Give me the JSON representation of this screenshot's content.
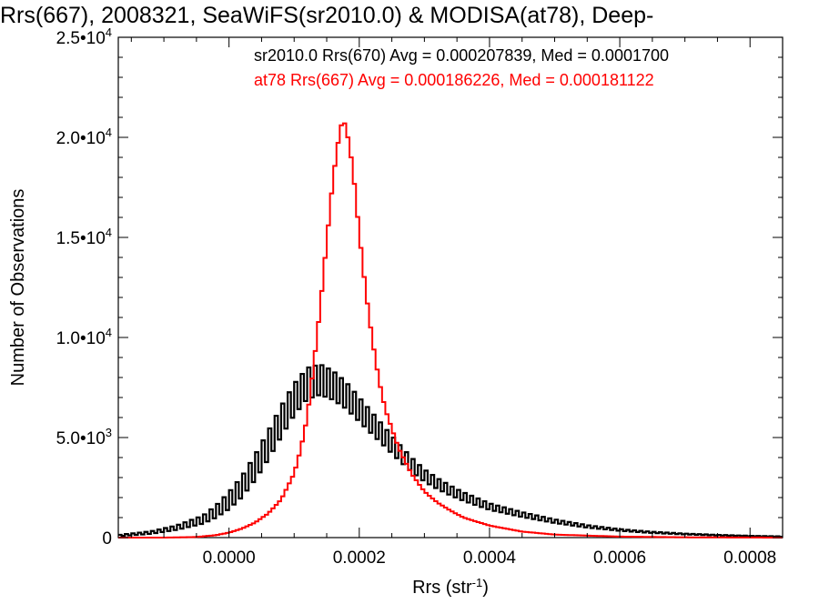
{
  "chart_data": {
    "type": "line",
    "title": "Rrs(667), 2008321, SeaWiFS(sr2010.0) & MODISA(at78), Deep-",
    "xlabel": "Rrs (str",
    "xlabel_sup": "-1",
    "xlabel_close": ")",
    "ylabel": "Number of Observations",
    "xlim": [
      -0.00017,
      0.00085
    ],
    "ylim": [
      0,
      25000
    ],
    "x_ticks": [
      {
        "value": 0.0,
        "label": "0.0000"
      },
      {
        "value": 0.0002,
        "label": "0.0002"
      },
      {
        "value": 0.0004,
        "label": "0.0004"
      },
      {
        "value": 0.0006,
        "label": "0.0006"
      },
      {
        "value": 0.0008,
        "label": "0.0008"
      }
    ],
    "y_ticks": [
      {
        "value": 0,
        "mant": "0",
        "exp": ""
      },
      {
        "value": 5000,
        "mant": "5.0•10",
        "exp": "3"
      },
      {
        "value": 10000,
        "mant": "1.0•10",
        "exp": "4"
      },
      {
        "value": 15000,
        "mant": "1.5•10",
        "exp": "4"
      },
      {
        "value": 20000,
        "mant": "2.0•10",
        "exp": "4"
      },
      {
        "value": 25000,
        "mant": "2.5•10",
        "exp": "4"
      }
    ],
    "grid": false,
    "step": true,
    "annotations": [
      {
        "text": "sr2010.0 Rrs(670) Avg = 0.000207839, Med = 0.0001700",
        "color": "#000000"
      },
      {
        "text": "at78 Rrs(667) Avg = 0.000186226, Med = 0.000181122",
        "color": "#ff0000"
      }
    ],
    "series": [
      {
        "name": "sr2010.0 Rrs(670)",
        "color": "#000000",
        "style": "sawtooth-step",
        "x": [
          -0.00017,
          -0.00012,
          -8e-05,
          -4e-05,
          -2e-05,
          0.0,
          2e-05,
          4e-05,
          6e-05,
          8e-05,
          0.0001,
          0.00012,
          0.00014,
          0.00016,
          0.00018,
          0.0002,
          0.00022,
          0.00024,
          0.00026,
          0.00028,
          0.0003,
          0.00032,
          0.00034,
          0.00036,
          0.00038,
          0.0004,
          0.00045,
          0.0005,
          0.00055,
          0.0006,
          0.00065,
          0.0007,
          0.00075,
          0.0008,
          0.00085
        ],
        "values": [
          100,
          250,
          500,
          900,
          1300,
          1850,
          2550,
          3500,
          4600,
          5800,
          6900,
          7700,
          7900,
          7600,
          7100,
          6400,
          5700,
          5000,
          4300,
          3650,
          3100,
          2700,
          2350,
          2050,
          1800,
          1550,
          1150,
          820,
          560,
          380,
          260,
          180,
          120,
          80,
          50
        ],
        "amplitude": [
          30,
          60,
          110,
          200,
          300,
          420,
          520,
          620,
          700,
          760,
          780,
          780,
          760,
          720,
          660,
          600,
          540,
          470,
          410,
          350,
          300,
          270,
          240,
          210,
          190,
          160,
          120,
          90,
          60,
          40,
          30,
          20,
          15,
          10,
          8
        ]
      },
      {
        "name": "at78 Rrs(667)",
        "color": "#ff0000",
        "style": "step",
        "x": [
          -0.00017,
          -0.0001,
          -5e-05,
          -2e-05,
          0.0,
          2e-05,
          4e-05,
          6e-05,
          8e-05,
          0.0001,
          0.00011,
          0.00012,
          0.00013,
          0.00014,
          0.00015,
          0.00016,
          0.00017,
          0.000175,
          0.00018,
          0.00019,
          0.0002,
          0.00021,
          0.00022,
          0.00023,
          0.00024,
          0.00026,
          0.00028,
          0.0003,
          0.00032,
          0.00034,
          0.00036,
          0.0004,
          0.00045,
          0.0005,
          0.0006,
          0.0007,
          0.00085
        ],
        "values": [
          0,
          0,
          30,
          120,
          250,
          450,
          750,
          1200,
          1900,
          3200,
          4400,
          6000,
          8600,
          11500,
          14800,
          18000,
          20300,
          20900,
          20500,
          18500,
          15200,
          12300,
          9900,
          7900,
          6400,
          4500,
          3200,
          2300,
          1750,
          1350,
          1000,
          600,
          300,
          150,
          50,
          15,
          0
        ]
      }
    ]
  }
}
